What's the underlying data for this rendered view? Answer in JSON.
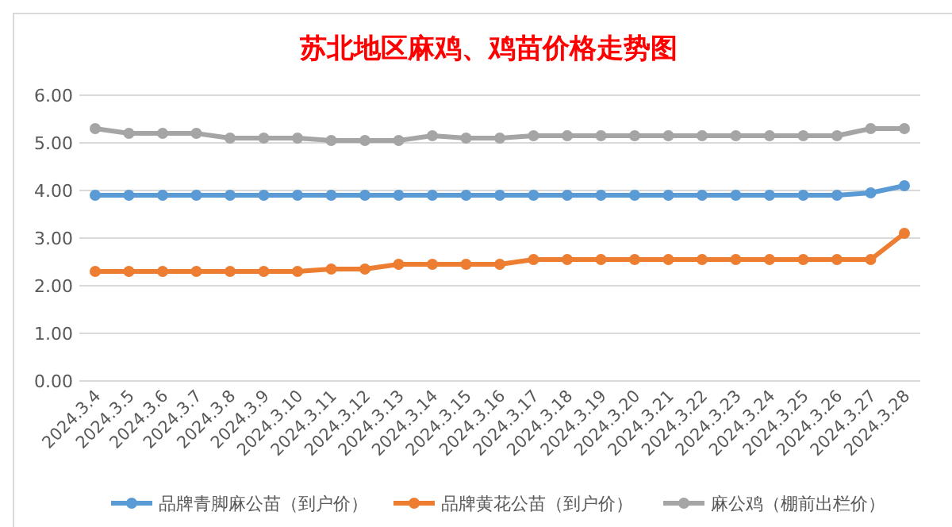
{
  "chart_data": {
    "type": "line",
    "title": "苏北地区麻鸡、鸡苗价格走势图",
    "categories": [
      "2024.3.4",
      "2024.3.5",
      "2024.3.6",
      "2024.3.7",
      "2024.3.8",
      "2024.3.9",
      "2024.3.10",
      "2024.3.11",
      "2024.3.12",
      "2024.3.13",
      "2024.3.14",
      "2024.3.15",
      "2024.3.16",
      "2024.3.17",
      "2024.3.18",
      "2024.3.19",
      "2024.3.20",
      "2024.3.21",
      "2024.3.22",
      "2024.3.23",
      "2024.3.24",
      "2024.3.25",
      "2024.3.26",
      "2024.3.27",
      "2024.3.28"
    ],
    "series": [
      {
        "name": "品牌青脚麻公苗（到户价）",
        "color": "#5b9bd5",
        "values": [
          3.9,
          3.9,
          3.9,
          3.9,
          3.9,
          3.9,
          3.9,
          3.9,
          3.9,
          3.9,
          3.9,
          3.9,
          3.9,
          3.9,
          3.9,
          3.9,
          3.9,
          3.9,
          3.9,
          3.9,
          3.9,
          3.9,
          3.9,
          3.95,
          4.1
        ]
      },
      {
        "name": "品牌黄花公苗（到户价）",
        "color": "#ed7d31",
        "values": [
          2.3,
          2.3,
          2.3,
          2.3,
          2.3,
          2.3,
          2.3,
          2.35,
          2.35,
          2.45,
          2.45,
          2.45,
          2.45,
          2.55,
          2.55,
          2.55,
          2.55,
          2.55,
          2.55,
          2.55,
          2.55,
          2.55,
          2.55,
          2.55,
          3.1
        ]
      },
      {
        "name": "麻公鸡（棚前出栏价）",
        "color": "#a5a5a5",
        "values": [
          5.3,
          5.2,
          5.2,
          5.2,
          5.1,
          5.1,
          5.1,
          5.05,
          5.05,
          5.05,
          5.15,
          5.1,
          5.1,
          5.15,
          5.15,
          5.15,
          5.15,
          5.15,
          5.15,
          5.15,
          5.15,
          5.15,
          5.15,
          5.3,
          5.3
        ]
      }
    ],
    "ylim": [
      0,
      6
    ],
    "yticks": [
      {
        "value": 0,
        "label": "0.00"
      },
      {
        "value": 1,
        "label": "1.00"
      },
      {
        "value": 2,
        "label": "2.00"
      },
      {
        "value": 3,
        "label": "3.00"
      },
      {
        "value": 4,
        "label": "4.00"
      },
      {
        "value": 5,
        "label": "5.00"
      },
      {
        "value": 6,
        "label": "6.00"
      }
    ],
    "grid": "y",
    "legend": "bottom",
    "marker": "circle",
    "line_style": "solid"
  }
}
